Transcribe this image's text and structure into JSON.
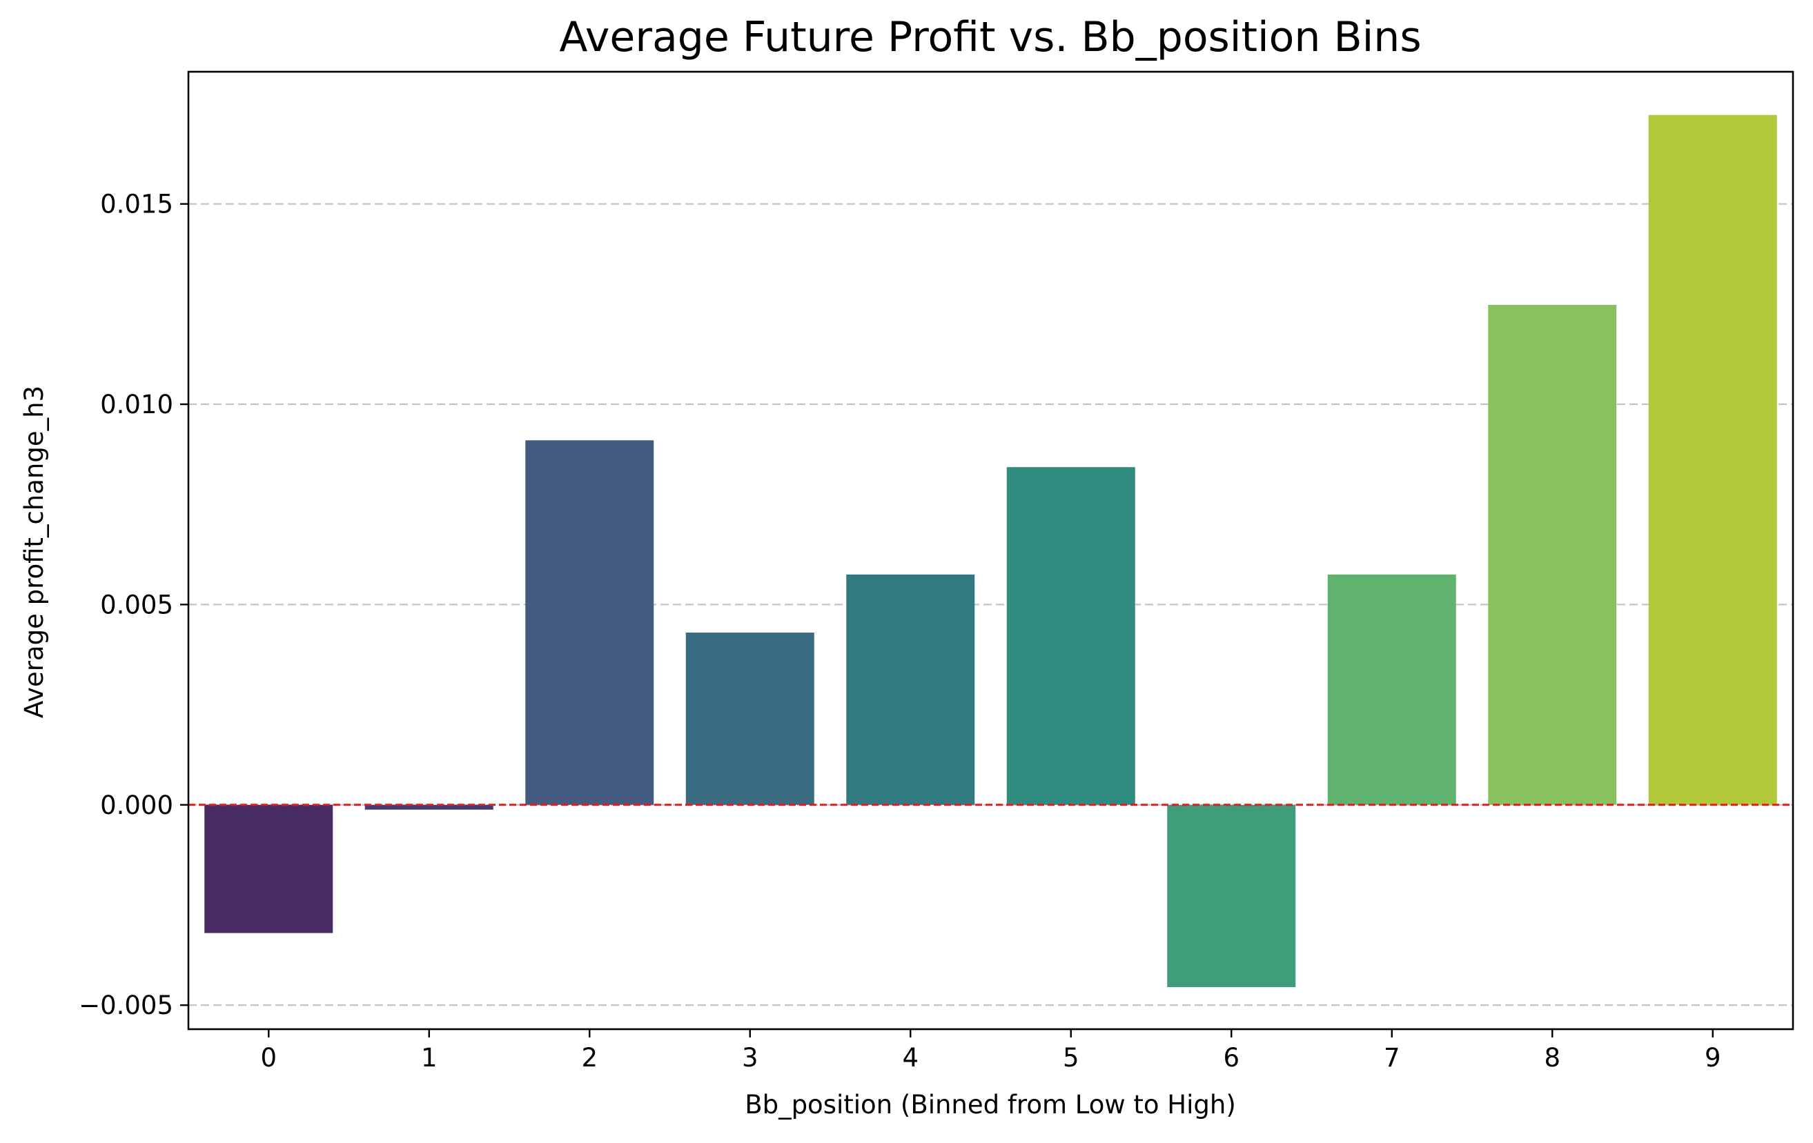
{
  "chart_data": {
    "type": "bar",
    "title": "Average Future Profit vs. Bb_position Bins",
    "xlabel": "Bb_position (Binned from Low to High)",
    "ylabel": "Average profit_change_h3",
    "categories": [
      "0",
      "1",
      "2",
      "3",
      "4",
      "5",
      "6",
      "7",
      "8",
      "9"
    ],
    "values": [
      -0.0032,
      -0.00012,
      0.0091,
      0.0043,
      0.00575,
      0.00843,
      -0.00455,
      0.00575,
      0.01248,
      0.01722
    ],
    "colors": [
      "#482c63",
      "#443c77",
      "#435b80",
      "#3a6c81",
      "#317b80",
      "#2f8c7e",
      "#3d9e79",
      "#5fb36f",
      "#88c25f",
      "#b1c83b"
    ],
    "ylim": [
      -0.0056,
      0.0183
    ],
    "yticks": [
      -0.005,
      0.0,
      0.005,
      0.01,
      0.015
    ],
    "ytick_labels": [
      "−0.005",
      "0.000",
      "0.005",
      "0.010",
      "0.015"
    ],
    "grid": "y-dashed",
    "reference_line": {
      "y": 0,
      "color": "#e41a1c",
      "style": "dashed"
    },
    "legend": "none"
  }
}
